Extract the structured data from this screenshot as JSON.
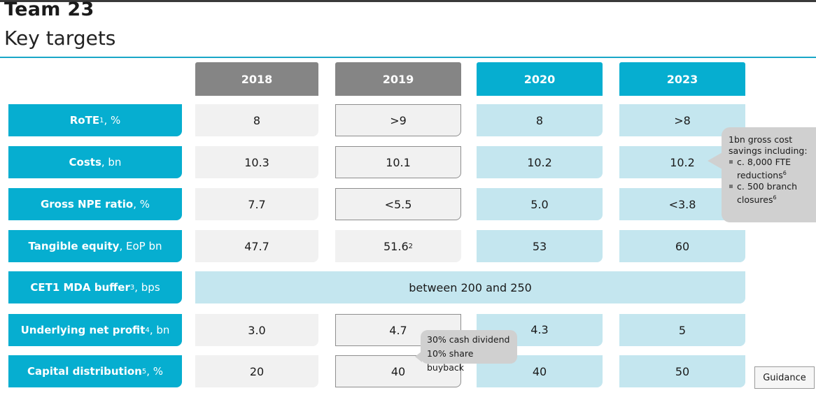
{
  "title": "Team 23",
  "subtitle": "Key targets",
  "columns": [
    "2018",
    "2019",
    "2020",
    "2023"
  ],
  "rows": [
    {
      "label_bold": "RoTE",
      "sup": "1",
      "label_unit": ", %",
      "values": [
        "8",
        ">9",
        "8",
        ">8"
      ],
      "sup2019": ""
    },
    {
      "label_bold": "Costs",
      "sup": "",
      "label_unit": ", bn",
      "values": [
        "10.3",
        "10.1",
        "10.2",
        "10.2"
      ],
      "sup2019": ""
    },
    {
      "label_bold": "Gross NPE ratio",
      "sup": "",
      "label_unit": ", %",
      "values": [
        "7.7",
        "<5.5",
        "5.0",
        "<3.8"
      ],
      "sup2019": ""
    },
    {
      "label_bold": "Tangible equity",
      "sup": "",
      "label_unit": ", EoP bn",
      "values": [
        "47.7",
        "51.6",
        "53",
        "60"
      ],
      "sup2019": "2"
    },
    {
      "label_bold": "CET1 MDA buffer",
      "sup": "3",
      "label_unit": ", bps",
      "merged_value": "between 200 and 250"
    },
    {
      "label_bold": "Underlying net profit",
      "sup": "4",
      "label_unit": ", bn",
      "values": [
        "3.0",
        "4.7",
        "4.3",
        "5"
      ],
      "sup2019": ""
    },
    {
      "label_bold": "Capital distribution",
      "sup": "5",
      "label_unit": ", %",
      "values": [
        "20",
        "40",
        "40",
        "50"
      ],
      "sup2019": ""
    }
  ],
  "callout": {
    "line1": "1bn gross cost",
    "line2": "savings including:",
    "bullets": [
      {
        "text": "c. 8,000 FTE reductions",
        "sup": "6"
      },
      {
        "text": "c. 500 branch closures",
        "sup": "6"
      }
    ]
  },
  "bubble": {
    "line1": "30% cash dividend",
    "line2": "10% share buyback"
  },
  "guidance_label": "Guidance",
  "colors": {
    "teal": "#06aed0",
    "light_teal": "#c4e6ef",
    "grey_header": "#858585",
    "light_grey": "#f1f1f1"
  }
}
